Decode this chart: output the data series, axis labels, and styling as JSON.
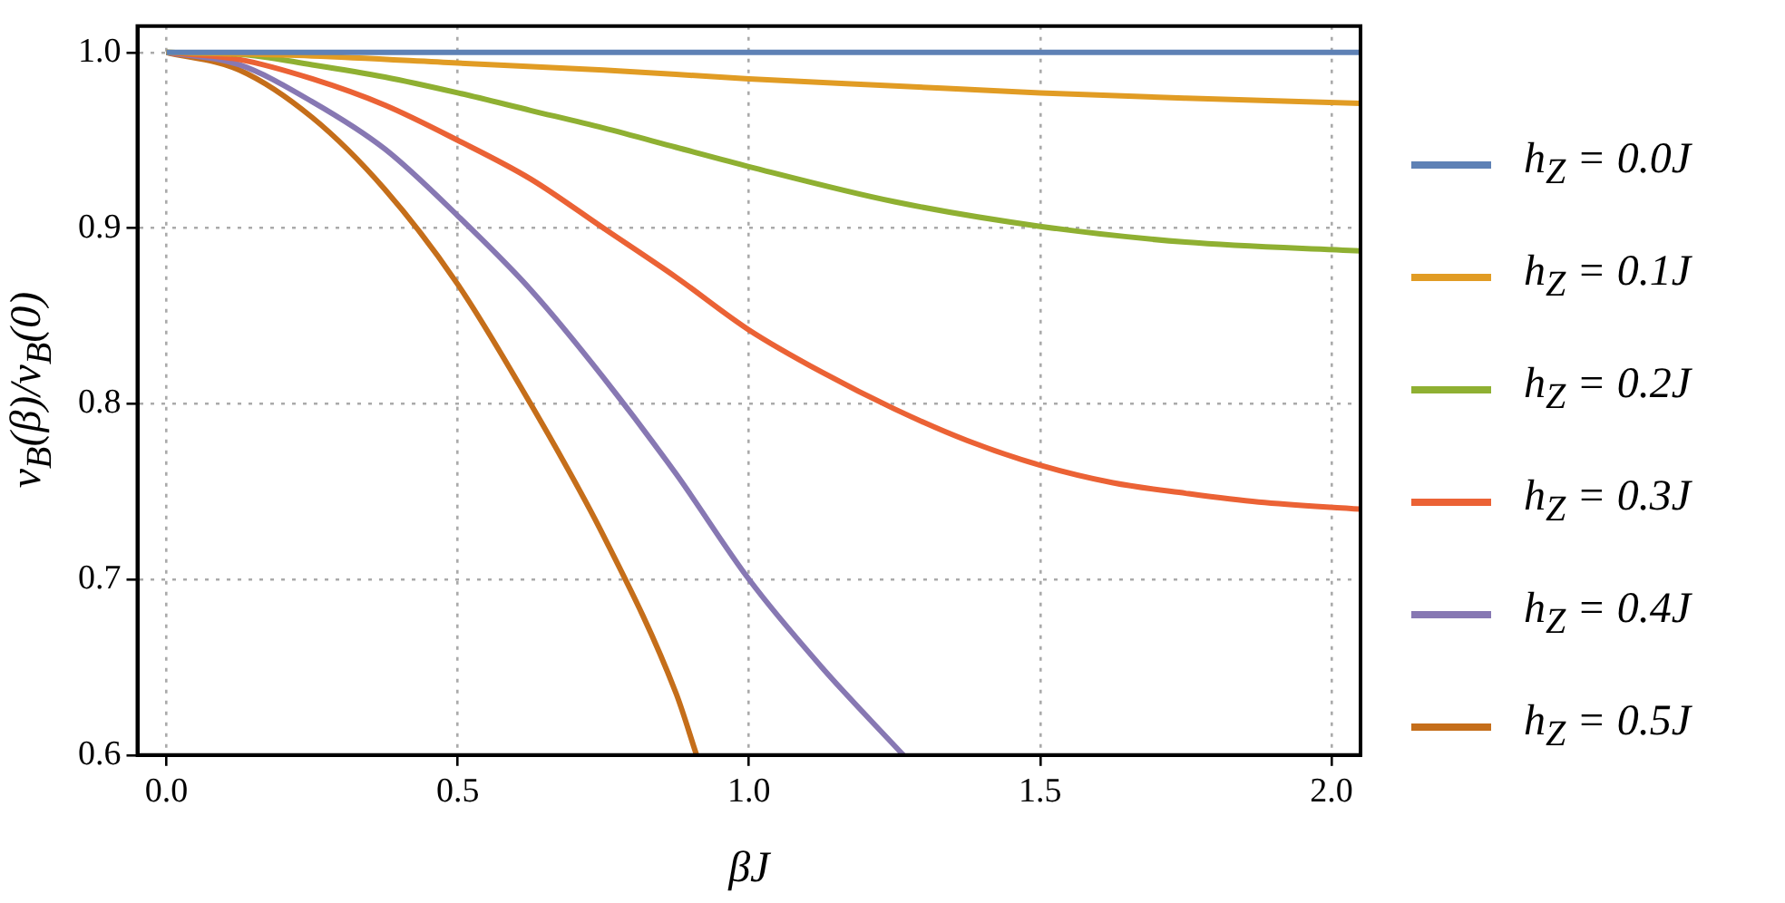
{
  "chart_data": {
    "type": "line",
    "xlabel": "βJ",
    "ylabel": "v$_{B}$(β)/v$_{B}$(0)",
    "xlim": [
      -0.05,
      2.05
    ],
    "ylim": [
      0.6,
      1.015
    ],
    "xticks": [
      {
        "value": 0,
        "label": "0.0"
      },
      0.5,
      {
        "value": 1,
        "label": "1.0"
      },
      1.5,
      {
        "value": 2,
        "label": "2.0"
      }
    ],
    "yticks": [
      0.6,
      0.7,
      0.8,
      0.9,
      {
        "value": 1,
        "label": "1.0"
      }
    ],
    "grid": true,
    "legend": "right",
    "marker": "none",
    "line_style": "solid",
    "series": [
      {
        "name": "h$_{Z}$ = 0.0J",
        "color": "#5e81b5",
        "x": [
          0,
          0.5,
          1,
          1.5,
          2.05
        ],
        "values": [
          1,
          1,
          1,
          1,
          1
        ]
      },
      {
        "name": "h$_{Z}$ = 0.1J",
        "color": "#e19c24",
        "x": [
          0,
          0.25,
          0.5,
          0.75,
          1,
          1.25,
          1.5,
          1.75,
          2.05
        ],
        "values": [
          1,
          0.998,
          0.994,
          0.99,
          0.985,
          0.981,
          0.977,
          0.974,
          0.971
        ]
      },
      {
        "name": "h$_{Z}$ = 0.2J",
        "color": "#8fb032",
        "x": [
          0,
          0.125,
          0.25,
          0.375,
          0.5,
          0.625,
          0.75,
          0.875,
          1,
          1.25,
          1.5,
          1.75,
          2.05
        ],
        "values": [
          1,
          0.999,
          0.993,
          0.986,
          0.977,
          0.967,
          0.957,
          0.946,
          0.935,
          0.915,
          0.901,
          0.892,
          0.887
        ]
      },
      {
        "name": "h$_{Z}$ = 0.3J",
        "color": "#eb6235",
        "x": [
          0,
          0.125,
          0.25,
          0.375,
          0.5,
          0.625,
          0.75,
          0.875,
          1,
          1.125,
          1.25,
          1.375,
          1.5,
          1.625,
          1.75,
          1.875,
          2.05
        ],
        "values": [
          1,
          0.996,
          0.985,
          0.97,
          0.95,
          0.928,
          0.9,
          0.872,
          0.842,
          0.818,
          0.797,
          0.779,
          0.765,
          0.755,
          0.749,
          0.744,
          0.74
        ]
      },
      {
        "name": "h$_{Z}$ = 0.4J",
        "color": "#8778b3",
        "x": [
          0,
          0.125,
          0.25,
          0.375,
          0.5,
          0.625,
          0.75,
          0.875,
          1,
          1.125,
          1.265
        ],
        "values": [
          1,
          0.993,
          0.972,
          0.945,
          0.907,
          0.865,
          0.815,
          0.76,
          0.7,
          0.65,
          0.6
        ]
      },
      {
        "name": "h$_{Z}$ = 0.5J",
        "color": "#c56e1a",
        "x": [
          0,
          0.125,
          0.25,
          0.375,
          0.5,
          0.625,
          0.75,
          0.875,
          0.91
        ],
        "values": [
          1,
          0.99,
          0.963,
          0.922,
          0.868,
          0.8,
          0.725,
          0.635,
          0.6
        ]
      }
    ]
  }
}
